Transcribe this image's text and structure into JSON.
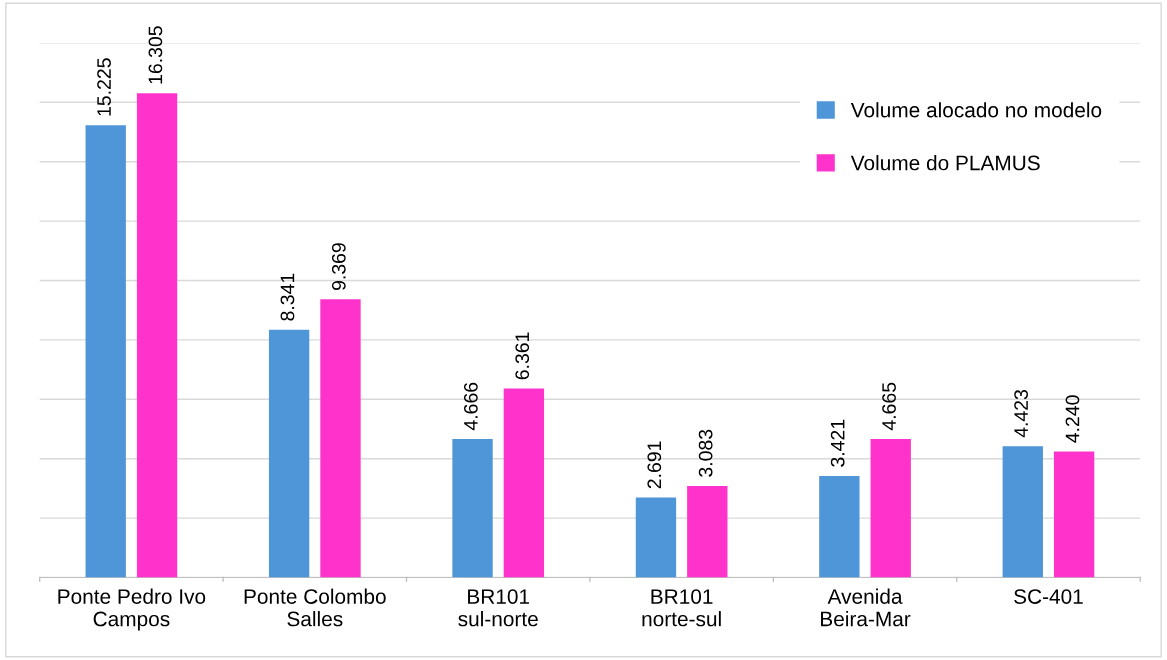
{
  "chart_data": {
    "type": "bar",
    "categories": [
      "Ponte Pedro Ivo\nCampos",
      "Ponte Colombo\nSalles",
      "BR101\nsul-norte",
      "BR101\nnorte-sul",
      "Avenida\nBeira-Mar",
      "SC-401"
    ],
    "series": [
      {
        "name": "Volume alocado no modelo",
        "color": "#4f96d9",
        "values": [
          15.225,
          8.341,
          4.666,
          2.691,
          3.421,
          4.423
        ],
        "value_labels": [
          "15.225",
          "8.341",
          "4.666",
          "2.691",
          "3.421",
          "4.423"
        ]
      },
      {
        "name": "Volume do PLAMUS",
        "color": "#ff33cc",
        "values": [
          16.305,
          9.369,
          6.361,
          3.083,
          4.665,
          4.24
        ],
        "value_labels": [
          "16.305",
          "9.369",
          "6.361",
          "3.083",
          "4.665",
          "4.240"
        ]
      }
    ],
    "ylim": [
      0,
      18
    ],
    "yticks": [
      {
        "value": 0,
        "label": null
      },
      {
        "value": 2,
        "label": null
      },
      {
        "value": 4,
        "label": null
      },
      {
        "value": 6,
        "label": null
      },
      {
        "value": 8,
        "label": null
      },
      {
        "value": 10,
        "label": null
      },
      {
        "value": 12,
        "label": null
      },
      {
        "value": 14,
        "label": null
      },
      {
        "value": 16,
        "label": null
      },
      {
        "value": 18,
        "label": null
      }
    ],
    "grid": "y",
    "legend": "top right",
    "tick_labels": "x"
  }
}
